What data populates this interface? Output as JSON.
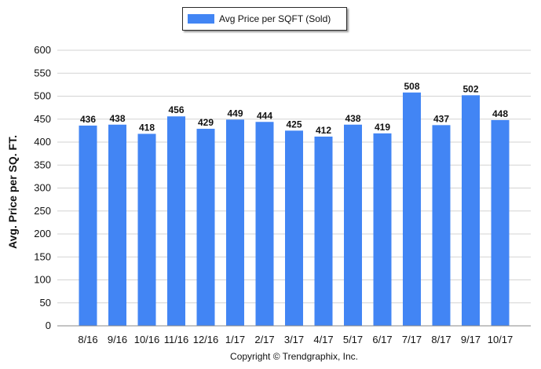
{
  "legend": {
    "label": "Avg Price per SQFT (Sold)",
    "color": "#4285f4"
  },
  "footer": {
    "copyright": "Copyright © Trendgraphix, Inc."
  },
  "chart_data": {
    "type": "bar",
    "title": "",
    "xlabel": "",
    "ylabel": "Avg. Price per SQ. FT.",
    "ylim": [
      0,
      600
    ],
    "yticks": [
      0,
      50,
      100,
      150,
      200,
      250,
      300,
      350,
      400,
      450,
      500,
      550,
      600
    ],
    "grid": true,
    "legend_position": "top-center",
    "categories": [
      "8/16",
      "9/16",
      "10/16",
      "11/16",
      "12/16",
      "1/17",
      "2/17",
      "3/17",
      "4/17",
      "5/17",
      "6/17",
      "7/17",
      "8/17",
      "9/17",
      "10/17"
    ],
    "series": [
      {
        "name": "Avg Price per SQFT (Sold)",
        "values": [
          436,
          438,
          418,
          456,
          429,
          449,
          444,
          425,
          412,
          438,
          419,
          508,
          437,
          502,
          448
        ]
      }
    ],
    "bar_color": "#4285f4"
  }
}
